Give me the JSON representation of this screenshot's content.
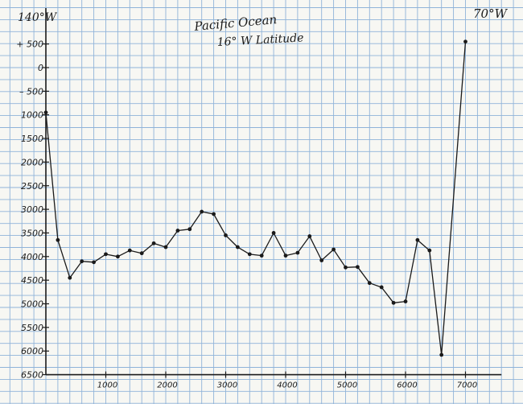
{
  "chart_data": {
    "type": "line",
    "title": "Pacific Ocean",
    "subtitle": "16° W Latitude",
    "left_label": "140°W",
    "right_label": "70°W",
    "xlabel": "",
    "ylabel": "",
    "xlim": [
      0,
      7600
    ],
    "ylim": [
      -6500,
      800
    ],
    "grid": true,
    "y_ticks": [
      {
        "value": 500,
        "label": "+ 500"
      },
      {
        "value": 0,
        "label": "0"
      },
      {
        "value": -500,
        "label": "– 500"
      },
      {
        "value": -1000,
        "label": "1000"
      },
      {
        "value": -1500,
        "label": "1500"
      },
      {
        "value": -2000,
        "label": "2000"
      },
      {
        "value": -2500,
        "label": "2500"
      },
      {
        "value": -3000,
        "label": "3000"
      },
      {
        "value": -3500,
        "label": "3500"
      },
      {
        "value": -4000,
        "label": "4000"
      },
      {
        "value": -4500,
        "label": "4500"
      },
      {
        "value": -5000,
        "label": "5000"
      },
      {
        "value": -5500,
        "label": "5500"
      },
      {
        "value": -6000,
        "label": "6000"
      },
      {
        "value": -6500,
        "label": "6500"
      }
    ],
    "x_ticks": [
      {
        "value": 1000,
        "label": "1000"
      },
      {
        "value": 2000,
        "label": "2000"
      },
      {
        "value": 3000,
        "label": "3000"
      },
      {
        "value": 4000,
        "label": "4000"
      },
      {
        "value": 5000,
        "label": "5000"
      },
      {
        "value": 6000,
        "label": "6000"
      },
      {
        "value": 7000,
        "label": "7000"
      }
    ],
    "series": [
      {
        "points": [
          [
            0,
            -950
          ],
          [
            200,
            -3650
          ],
          [
            400,
            -4450
          ],
          [
            600,
            -4100
          ],
          [
            800,
            -4120
          ],
          [
            1000,
            -3950
          ],
          [
            1200,
            -4000
          ],
          [
            1400,
            -3870
          ],
          [
            1600,
            -3930
          ],
          [
            1800,
            -3720
          ],
          [
            2000,
            -3800
          ],
          [
            2200,
            -3450
          ],
          [
            2400,
            -3420
          ],
          [
            2600,
            -3050
          ],
          [
            2800,
            -3100
          ],
          [
            3000,
            -3550
          ],
          [
            3200,
            -3800
          ],
          [
            3400,
            -3950
          ],
          [
            3600,
            -3980
          ],
          [
            3800,
            -3500
          ],
          [
            4000,
            -3980
          ],
          [
            4200,
            -3920
          ],
          [
            4400,
            -3570
          ],
          [
            4600,
            -4080
          ],
          [
            4800,
            -3850
          ],
          [
            5000,
            -4230
          ],
          [
            5200,
            -4220
          ],
          [
            5400,
            -4560
          ],
          [
            5600,
            -4650
          ],
          [
            5800,
            -4980
          ],
          [
            6000,
            -4950
          ],
          [
            6200,
            -3650
          ],
          [
            6400,
            -3870
          ],
          [
            6600,
            -6080
          ],
          [
            7000,
            550
          ]
        ]
      }
    ]
  }
}
